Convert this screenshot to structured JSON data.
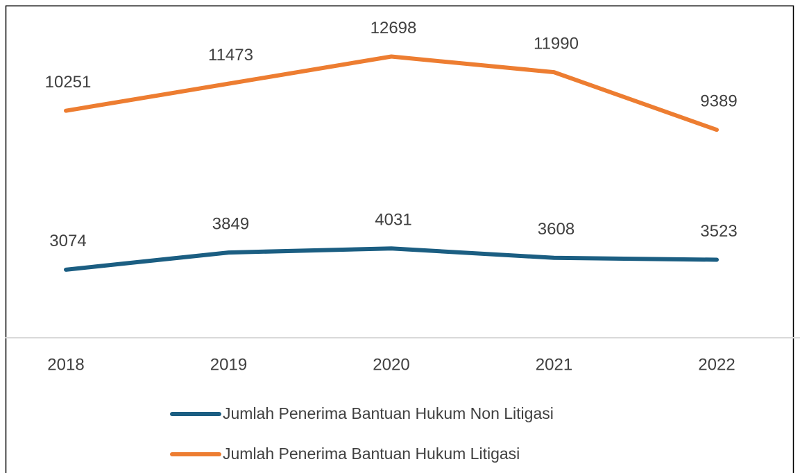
{
  "chart_data": {
    "type": "line",
    "categories": [
      "2018",
      "2019",
      "2020",
      "2021",
      "2022"
    ],
    "series": [
      {
        "name": "Jumlah Penerima Bantuan Hukum Non Litigasi",
        "color": "#1b5e82",
        "values": [
          3074,
          3849,
          4031,
          3608,
          3523
        ]
      },
      {
        "name": "Jumlah Penerima Bantuan Hukum Litigasi",
        "color": "#ed7d31",
        "values": [
          10251,
          11473,
          12698,
          11990,
          9389
        ]
      }
    ],
    "ylim": [
      0,
      15000
    ],
    "data_labels": true,
    "legend": "bottom"
  }
}
